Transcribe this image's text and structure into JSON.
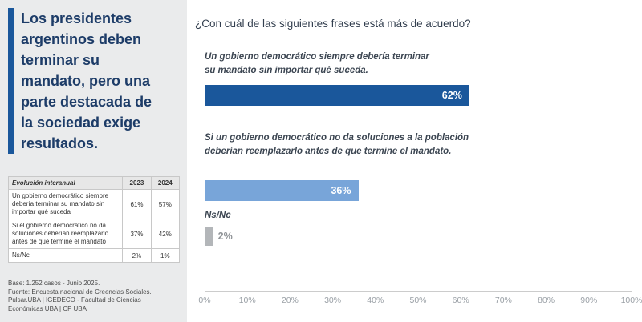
{
  "colors": {
    "dark_blue": "#1a579b",
    "light_blue": "#78a5d9",
    "gray_bar": "#b3b6b9",
    "sidebar_bg": "#eaebec",
    "headline_text": "#1d3c68"
  },
  "sidebar": {
    "headline": "Los presidentes argentinos deben terminar su mandato, pero una parte destacada de la sociedad exige resultados.",
    "table": {
      "title": "Evolución interanual",
      "col_2023": "2023",
      "col_2024": "2024",
      "rows": [
        {
          "label": "Un gobierno democrático siempre debería terminar su mandato sin importar qué suceda",
          "v2023": "61%",
          "v2024": "57%"
        },
        {
          "label": "Si el gobierno democrático no da soluciones deberían reemplazarlo antes de que termine el mandato",
          "v2023": "37%",
          "v2024": "42%"
        },
        {
          "label": "Ns/Nc",
          "v2023": "2%",
          "v2024": "1%"
        }
      ]
    },
    "footnote_line1": "Base: 1.252 casos - Junio 2025.",
    "footnote_line2": "Fuente: Encuesta nacional de Creencias Sociales. Pulsar.UBA | IGEDECO - Facultad de Ciencias Económicas UBA | CP UBA"
  },
  "main": {
    "question": "¿Con cuál de las siguientes frases está más de acuerdo?",
    "statement_display": [
      "Un gobierno democrático siempre debería terminar\nsu mandato sin importar qué suceda.",
      "Si un gobierno democrático no da soluciones a la población\ndeberían reemplazarlo antes de que termine el mandato."
    ]
  },
  "chart_data": {
    "type": "bar",
    "orientation": "horizontal",
    "title": "¿Con cuál de las siguientes frases está más de acuerdo?",
    "categories": [
      "Un gobierno democrático siempre debería terminar su mandato sin importar qué suceda.",
      "Si un gobierno democrático no da soluciones a la población deberían reemplazarlo antes de que termine el mandato.",
      "Ns/Nc"
    ],
    "values": [
      62,
      36,
      2
    ],
    "value_labels": [
      "62%",
      "36%",
      "2%"
    ],
    "bar_colors": [
      "#1a579b",
      "#78a5d9",
      "#b3b6b9"
    ],
    "xlim": [
      0,
      100
    ],
    "x_ticks": [
      "0%",
      "10%",
      "20%",
      "30%",
      "40%",
      "50%",
      "60%",
      "70%",
      "80%",
      "90%",
      "100%"
    ],
    "grid": false,
    "legend": false
  }
}
